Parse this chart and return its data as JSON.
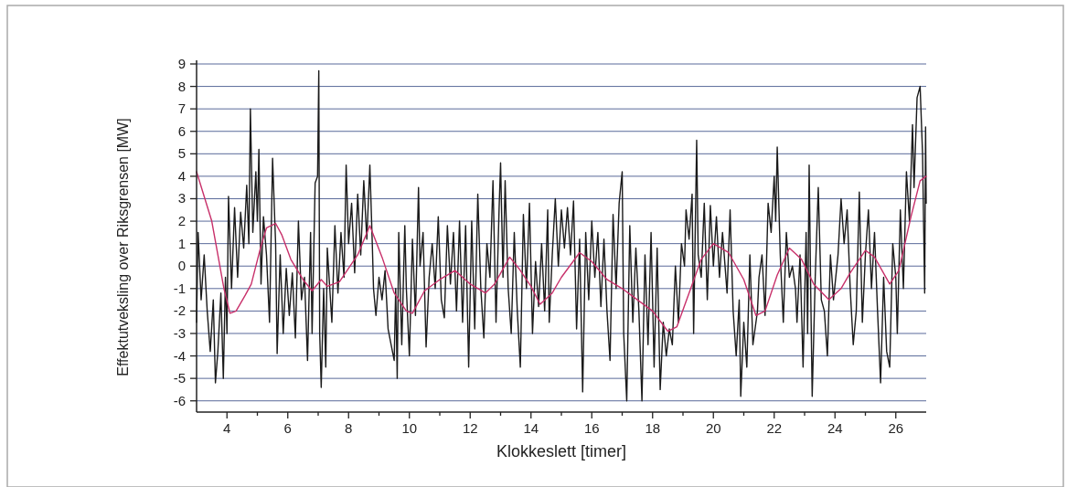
{
  "chart_data": {
    "type": "line",
    "xlabel": "Klokkeslett [timer]",
    "ylabel": "Effektutveksling over Riksgrensen [MW]",
    "xlim": [
      3,
      27
    ],
    "ylim": [
      -6.5,
      9
    ],
    "xticks": [
      4,
      {
        "value": 5,
        "label": null
      },
      6,
      {
        "value": 7,
        "label": null
      },
      8,
      {
        "value": 9,
        "label": null
      },
      10,
      {
        "value": 11,
        "label": null
      },
      12,
      {
        "value": 13,
        "label": null
      },
      14,
      {
        "value": 15,
        "label": null
      },
      16,
      {
        "value": 17,
        "label": null
      },
      18,
      {
        "value": 19,
        "label": null
      },
      20,
      {
        "value": 21,
        "label": null
      },
      22,
      {
        "value": 23,
        "label": null
      },
      24,
      {
        "value": 25,
        "label": null
      },
      26
    ],
    "yticks": [
      -6,
      -5,
      -4,
      -3,
      -2,
      -1,
      0,
      1,
      2,
      3,
      4,
      5,
      6,
      7,
      8,
      9
    ],
    "grid": "y",
    "marker": "none",
    "line_style": "solid",
    "series": [
      {
        "color": "#1a1a1a",
        "x": [
          3.0,
          3.05,
          3.15,
          3.25,
          3.35,
          3.45,
          3.55,
          3.62,
          3.7,
          3.8,
          3.88,
          3.95,
          4.0,
          4.05,
          4.15,
          4.25,
          4.35,
          4.45,
          4.55,
          4.65,
          4.72,
          4.77,
          4.85,
          4.95,
          5.0,
          5.05,
          5.12,
          5.2,
          5.3,
          5.4,
          5.5,
          5.6,
          5.65,
          5.75,
          5.85,
          5.95,
          6.05,
          6.15,
          6.25,
          6.35,
          6.45,
          6.55,
          6.65,
          6.75,
          6.8,
          6.9,
          6.98,
          7.02,
          7.05,
          7.1,
          7.18,
          7.25,
          7.3,
          7.45,
          7.55,
          7.65,
          7.75,
          7.85,
          7.92,
          8.0,
          8.1,
          8.2,
          8.3,
          8.4,
          8.5,
          8.6,
          8.7,
          8.78,
          8.82,
          8.9,
          9.0,
          9.1,
          9.2,
          9.3,
          9.4,
          9.5,
          9.55,
          9.6,
          9.65,
          9.75,
          9.85,
          9.9,
          10.0,
          10.1,
          10.2,
          10.3,
          10.35,
          10.45,
          10.55,
          10.65,
          10.75,
          10.85,
          10.95,
          11.05,
          11.15,
          11.25,
          11.35,
          11.45,
          11.55,
          11.65,
          11.75,
          11.85,
          11.95,
          12.05,
          12.15,
          12.25,
          12.35,
          12.45,
          12.55,
          12.65,
          12.75,
          12.85,
          12.95,
          13.0,
          13.08,
          13.15,
          13.25,
          13.35,
          13.45,
          13.55,
          13.65,
          13.75,
          13.85,
          13.95,
          14.05,
          14.15,
          14.25,
          14.35,
          14.45,
          14.55,
          14.6,
          14.7,
          14.8,
          14.9,
          15.0,
          15.1,
          15.2,
          15.3,
          15.4,
          15.5,
          15.6,
          15.7,
          15.8,
          15.9,
          16.0,
          16.1,
          16.2,
          16.3,
          16.4,
          16.5,
          16.6,
          16.7,
          16.8,
          16.9,
          17.0,
          17.05,
          17.15,
          17.25,
          17.35,
          17.45,
          17.55,
          17.65,
          17.75,
          17.85,
          17.95,
          18.05,
          18.15,
          18.25,
          18.35,
          18.45,
          18.55,
          18.65,
          18.75,
          18.85,
          18.95,
          19.05,
          19.1,
          19.2,
          19.3,
          19.35,
          19.45,
          19.5,
          19.6,
          19.7,
          19.8,
          19.9,
          20.0,
          20.1,
          20.2,
          20.3,
          20.45,
          20.55,
          20.65,
          20.75,
          20.85,
          20.9,
          21.0,
          21.1,
          21.2,
          21.3,
          21.45,
          21.5,
          21.6,
          21.7,
          21.8,
          21.9,
          22.0,
          22.05,
          22.1,
          22.2,
          22.3,
          22.4,
          22.5,
          22.6,
          22.7,
          22.75,
          22.85,
          22.95,
          23.05,
          23.1,
          23.15,
          23.2,
          23.25,
          23.35,
          23.45,
          23.55,
          23.65,
          23.75,
          23.85,
          23.95,
          24.1,
          24.2,
          24.3,
          24.4,
          24.5,
          24.6,
          24.7,
          24.8,
          24.9,
          25.0,
          25.1,
          25.2,
          25.3,
          25.4,
          25.5,
          25.6,
          25.7,
          25.8,
          25.9,
          26.0,
          26.05,
          26.15,
          26.25,
          26.35,
          26.45,
          26.55,
          26.6,
          26.7,
          26.8,
          26.88,
          26.95,
          26.98,
          27.0
        ],
        "values": [
          -2.5,
          1.5,
          -1.5,
          0.5,
          -2,
          -3.8,
          -1.5,
          -5.2,
          -3.8,
          -1.2,
          -5.0,
          -0.5,
          -3.0,
          3.1,
          -1.0,
          2.6,
          -0.5,
          2.4,
          0.8,
          3.6,
          1.0,
          7.0,
          1.5,
          4.2,
          2.0,
          5.2,
          -0.8,
          2.2,
          0.5,
          -2.5,
          4.8,
          1.0,
          -3.9,
          0.5,
          -3.0,
          -0.1,
          -2.2,
          -0.3,
          -3.2,
          2.0,
          -1.5,
          -0.5,
          -4.2,
          1.5,
          -3.0,
          3.7,
          4.0,
          8.7,
          -3.0,
          -5.4,
          -1.0,
          -4.5,
          0.8,
          -2.5,
          1.8,
          -1.2,
          1.5,
          -0.5,
          4.5,
          1.0,
          2.8,
          -0.3,
          3.2,
          0.5,
          3.8,
          1.2,
          4.5,
          1.0,
          -1.0,
          -2.2,
          -0.5,
          -1.5,
          -0.2,
          -2.8,
          -3.5,
          -4.2,
          -1.0,
          -5.0,
          1.5,
          -3.5,
          1.8,
          -1.0,
          -4.0,
          1.2,
          -2.2,
          3.5,
          0.0,
          1.5,
          -3.6,
          -0.5,
          1.0,
          -1.0,
          2.2,
          -1.5,
          -2.3,
          1.8,
          -0.8,
          1.5,
          -2.0,
          2.0,
          -2.5,
          1.8,
          -4.5,
          2.0,
          -2.8,
          3.2,
          -1.0,
          -3.2,
          1.0,
          -0.5,
          3.8,
          -2.5,
          2.5,
          4.6,
          -0.5,
          3.8,
          -1.0,
          -3.0,
          1.5,
          -2.0,
          -4.5,
          2.3,
          -1.0,
          2.8,
          -3.0,
          0.2,
          -1.8,
          1.0,
          -2.0,
          2.5,
          -2.5,
          0.5,
          3.0,
          0.0,
          2.5,
          0.8,
          2.6,
          0.5,
          2.9,
          -2.8,
          1.2,
          -5.6,
          1.5,
          -1.5,
          2.0,
          -0.5,
          1.5,
          -1.8,
          1.2,
          -2.0,
          -4.2,
          2.3,
          -1.0,
          2.8,
          4.2,
          -3.0,
          -6.0,
          1.8,
          -2.5,
          0.8,
          -2.0,
          -6.0,
          0.5,
          -3.5,
          1.5,
          -4.5,
          0.8,
          -5.5,
          -2.5,
          -4.0,
          -2.8,
          -3.5,
          0.0,
          -2.5,
          1.0,
          0.0,
          2.5,
          1.2,
          3.2,
          -3.0,
          5.6,
          0.5,
          -0.5,
          2.8,
          -1.5,
          2.7,
          0.0,
          2.2,
          -0.5,
          1.5,
          -1.2,
          2.5,
          -2.0,
          -4.0,
          -1.5,
          -5.8,
          -2.5,
          -4.5,
          0.5,
          -3.5,
          -2.0,
          -0.5,
          0.5,
          -2.2,
          2.8,
          1.5,
          4.0,
          2.0,
          5.3,
          0.5,
          -2.5,
          1.5,
          -0.5,
          0.0,
          -1.0,
          -2.5,
          0.5,
          -4.5,
          1.5,
          -3.0,
          4.5,
          -1.0,
          -5.8,
          -0.5,
          3.5,
          -1.5,
          -2.0,
          -4.0,
          0.5,
          -1.5,
          0.5,
          3.0,
          1.0,
          2.5,
          -1.0,
          -3.5,
          -2.0,
          3.3,
          -2.5,
          0.5,
          2.5,
          -1.0,
          1.5,
          -2.0,
          -5.2,
          -0.5,
          -3.8,
          -4.5,
          1.0,
          -0.5,
          -3.0,
          2.5,
          -1.0,
          4.2,
          2.0,
          6.3,
          3.5,
          7.5,
          8.0,
          5.0,
          -1.2,
          6.2,
          2.8
        ]
      },
      {
        "color": "#c8306a",
        "x": [
          3,
          3.5,
          3.7,
          3.9,
          4.1,
          4.3,
          4.6,
          4.8,
          5.1,
          5.3,
          5.6,
          5.8,
          6.1,
          6.5,
          6.8,
          7.1,
          7.3,
          7.7,
          8.0,
          8.3,
          8.7,
          9.1,
          9.5,
          9.9,
          10.1,
          10.5,
          11.0,
          11.5,
          12.0,
          12.5,
          12.8,
          13.3,
          13.6,
          14.0,
          14.3,
          14.7,
          15.0,
          15.6,
          16.0,
          16.5,
          17.0,
          17.5,
          18.0,
          18.5,
          18.8,
          19.2,
          19.6,
          20.0,
          20.5,
          21.0,
          21.4,
          21.7,
          22.1,
          22.5,
          22.9,
          23.3,
          23.8,
          24.2,
          24.5,
          25.0,
          25.3,
          25.8,
          26.1,
          26.5,
          26.8,
          27.0
        ],
        "values": [
          4.2,
          2.0,
          0.5,
          -1.0,
          -2.1,
          -2.0,
          -1.3,
          -0.8,
          0.8,
          1.7,
          1.9,
          1.4,
          0.3,
          -0.6,
          -1.1,
          -0.6,
          -0.9,
          -0.7,
          -0.1,
          0.5,
          1.8,
          0.4,
          -1.2,
          -2.0,
          -2.1,
          -1.1,
          -0.6,
          -0.2,
          -0.8,
          -1.2,
          -0.8,
          0.4,
          -0.1,
          -0.9,
          -1.7,
          -1.2,
          -0.5,
          0.6,
          0.2,
          -0.6,
          -1.0,
          -1.5,
          -2.0,
          -2.9,
          -2.7,
          -1.2,
          0.3,
          1.0,
          0.6,
          -0.6,
          -2.2,
          -2.0,
          -0.4,
          0.8,
          0.3,
          -0.8,
          -1.5,
          -1.0,
          -0.3,
          0.7,
          0.4,
          -0.8,
          -0.2,
          2.2,
          3.8,
          4.0
        ]
      }
    ]
  }
}
